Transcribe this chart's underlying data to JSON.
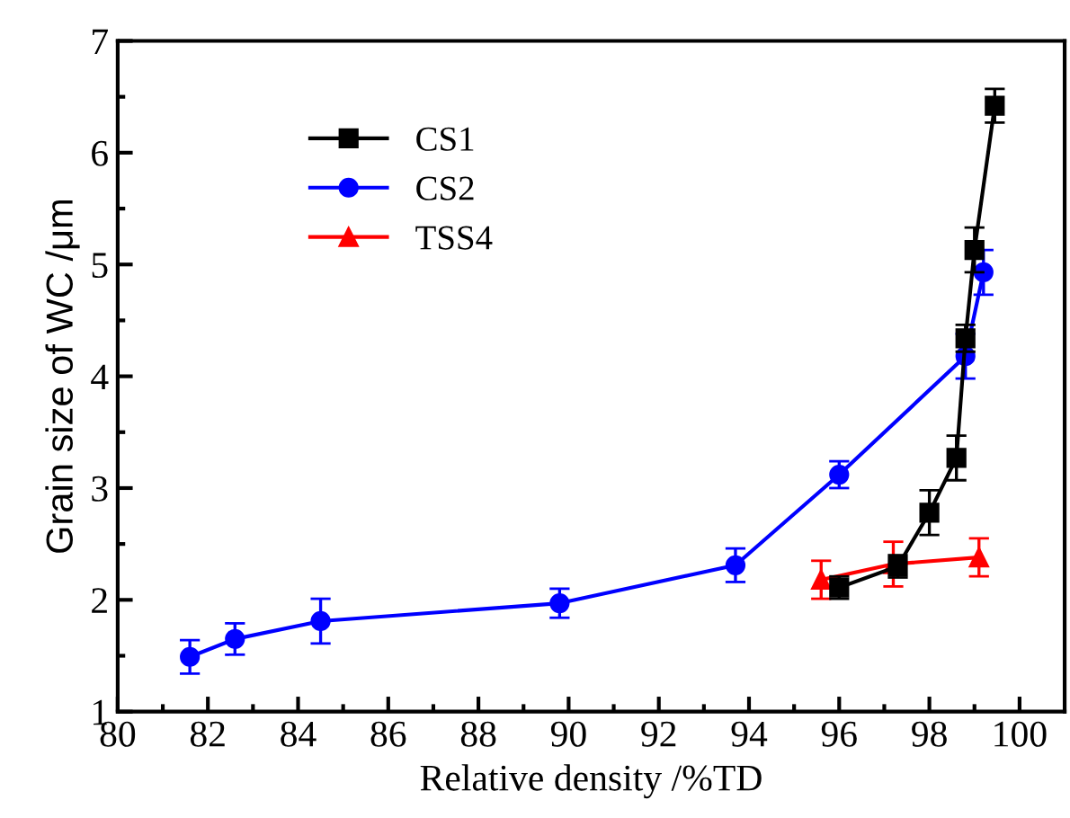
{
  "chart_data": {
    "type": "line",
    "xlabel": "Relative density /%TD",
    "ylabel": "Grain size of WC /μm",
    "xlim": [
      80,
      101
    ],
    "ylim": [
      1,
      7
    ],
    "xticks": [
      80,
      82,
      84,
      86,
      88,
      90,
      92,
      94,
      96,
      98,
      100
    ],
    "yticks": [
      1,
      2,
      3,
      4,
      5,
      6,
      7
    ],
    "grid": false,
    "legend": "top left",
    "line_style": "solid",
    "series": [
      {
        "name": "CS1",
        "color": "#000000",
        "marker": "square",
        "x": [
          96.0,
          97.3,
          98.0,
          98.6,
          98.8,
          99.0,
          99.45
        ],
        "values": [
          2.11,
          2.3,
          2.78,
          3.27,
          4.34,
          5.13,
          6.42
        ],
        "errors": [
          0.1,
          0.1,
          0.2,
          0.2,
          0.12,
          0.2,
          0.15
        ]
      },
      {
        "name": "CS2",
        "color": "#0000ff",
        "marker": "circle",
        "x": [
          81.6,
          82.6,
          84.5,
          89.8,
          93.7,
          96.0,
          98.8,
          99.2
        ],
        "values": [
          1.49,
          1.65,
          1.81,
          1.97,
          2.31,
          3.12,
          4.18,
          4.93
        ],
        "errors": [
          0.15,
          0.14,
          0.2,
          0.13,
          0.15,
          0.12,
          0.2,
          0.2
        ]
      },
      {
        "name": "TSS4",
        "color": "#ff0000",
        "marker": "triangle",
        "x": [
          95.6,
          97.2,
          99.1
        ],
        "values": [
          2.18,
          2.32,
          2.38
        ],
        "errors": [
          0.17,
          0.2,
          0.17
        ]
      }
    ]
  }
}
